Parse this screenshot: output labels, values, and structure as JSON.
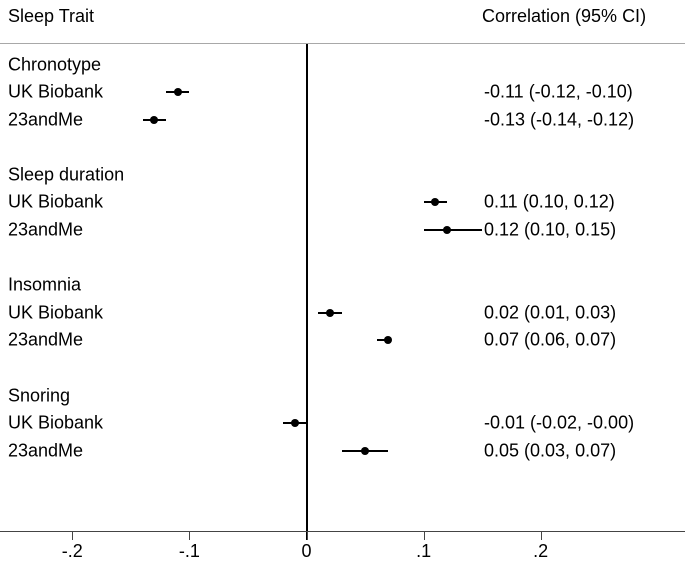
{
  "chart_data": {
    "type": "forest",
    "title_left": "Sleep Trait",
    "title_right": "Correlation (95% CI)",
    "xlabel": "",
    "ylabel": "",
    "x_axis": {
      "range": [
        -0.26,
        0.32
      ],
      "zero_reference_line": true,
      "ticks": [
        {
          "label": "-.2",
          "value": -0.2
        },
        {
          "label": "-.1",
          "value": -0.1
        },
        {
          "label": "0",
          "value": 0.0
        },
        {
          "label": ".1",
          "value": 0.1
        },
        {
          "label": ".2",
          "value": 0.2
        }
      ]
    },
    "groups": [
      {
        "label": "Chronotype",
        "rows": [
          {
            "label": "UK Biobank",
            "estimate": -0.11,
            "ci_low": -0.12,
            "ci_high": -0.1,
            "text": "-0.11 (-0.12, -0.10)"
          },
          {
            "label": "23andMe",
            "estimate": -0.13,
            "ci_low": -0.14,
            "ci_high": -0.12,
            "text": "-0.13 (-0.14, -0.12)"
          }
        ]
      },
      {
        "label": "Sleep duration",
        "rows": [
          {
            "label": "UK Biobank",
            "estimate": 0.11,
            "ci_low": 0.1,
            "ci_high": 0.12,
            "text": "0.11 (0.10, 0.12)"
          },
          {
            "label": "23andMe",
            "estimate": 0.12,
            "ci_low": 0.1,
            "ci_high": 0.15,
            "text": "0.12 (0.10, 0.15)"
          }
        ]
      },
      {
        "label": "Insomnia",
        "rows": [
          {
            "label": "UK Biobank",
            "estimate": 0.02,
            "ci_low": 0.01,
            "ci_high": 0.03,
            "text": "0.02 (0.01, 0.03)"
          },
          {
            "label": "23andMe",
            "estimate": 0.07,
            "ci_low": 0.06,
            "ci_high": 0.07,
            "text": "0.07 (0.06, 0.07)"
          }
        ]
      },
      {
        "label": "Snoring",
        "rows": [
          {
            "label": "UK Biobank",
            "estimate": -0.01,
            "ci_low": -0.02,
            "ci_high": 0.0,
            "text": "-0.01 (-0.02, -0.00)"
          },
          {
            "label": "23andMe",
            "estimate": 0.05,
            "ci_low": 0.03,
            "ci_high": 0.07,
            "text": "0.05 (0.03, 0.07)"
          }
        ]
      }
    ],
    "colors": {
      "background": "#ffffff",
      "text": "#000000",
      "marker": "#000000",
      "ci_line": "#000000",
      "zero_line": "#000000",
      "axis_line": "#444444",
      "header_rule": "#a8a8a8"
    },
    "legend": "none",
    "grid": "off"
  }
}
